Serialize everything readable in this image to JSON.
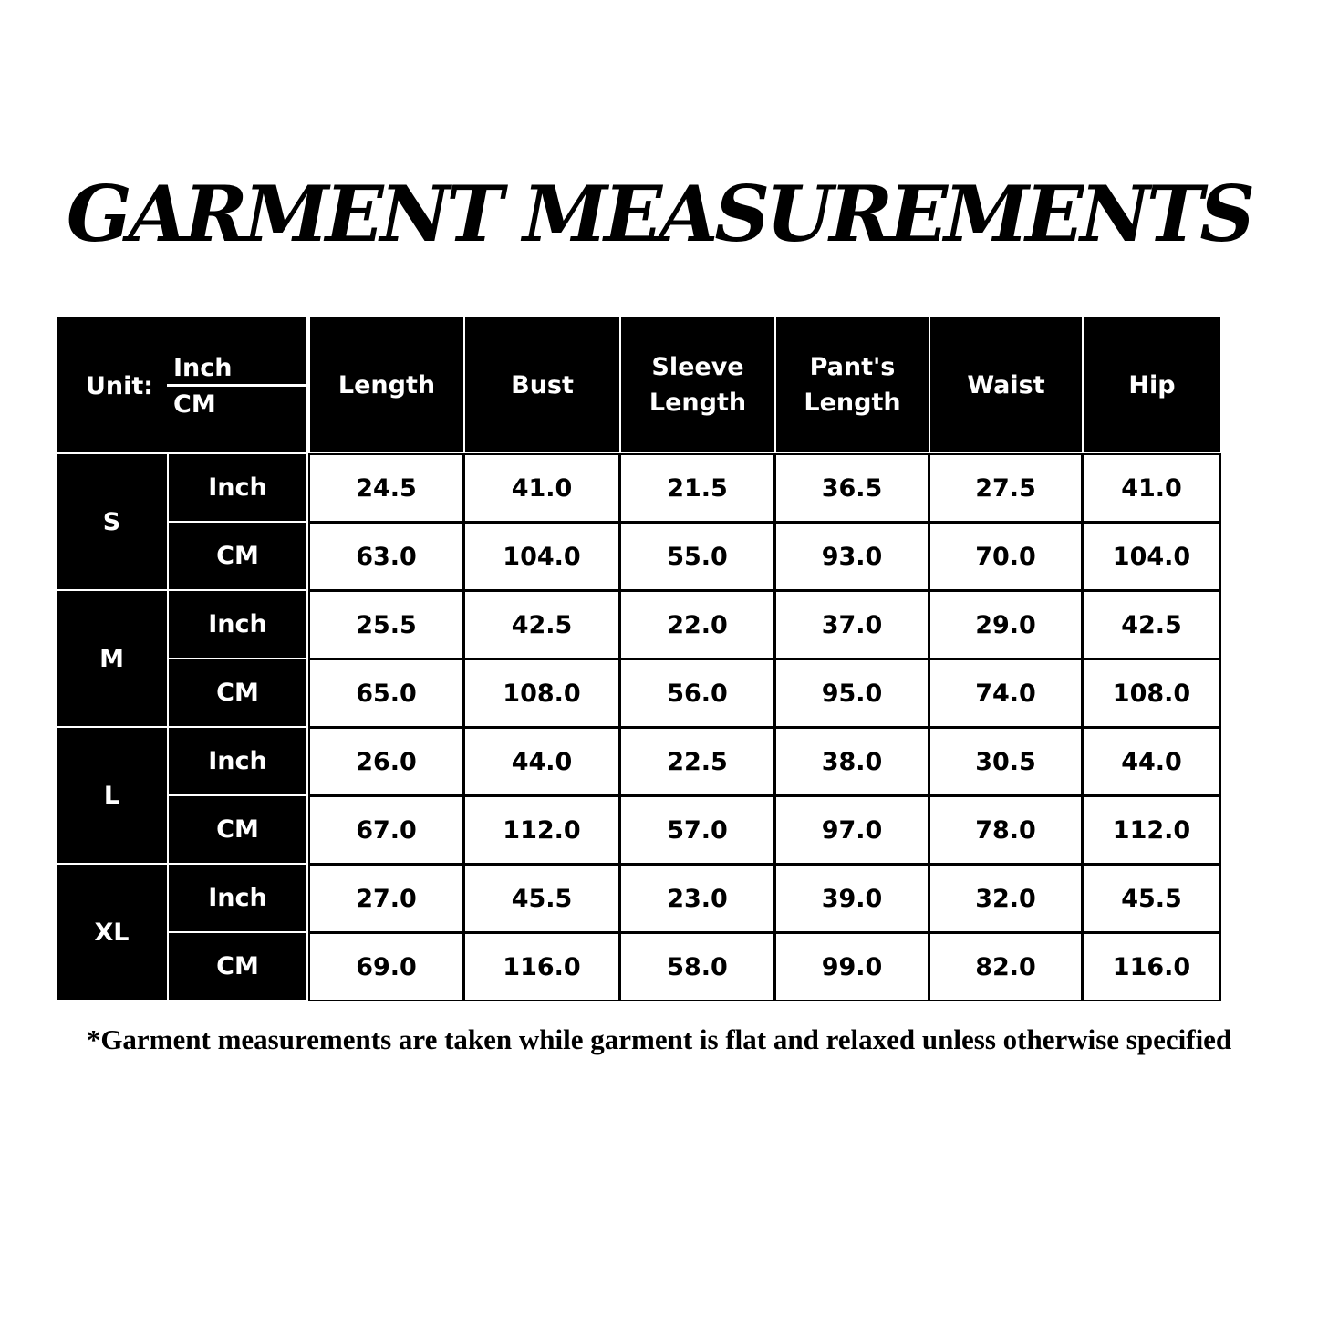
{
  "title": "GARMENT MEASUREMENTS",
  "table": {
    "header": {
      "unit_label": "Unit:",
      "unit_top": "Inch",
      "unit_bottom": "CM",
      "columns": [
        "Length",
        "Bust",
        "Sleeve Length",
        "Pant's Length",
        "Waist",
        "Hip"
      ]
    },
    "groups": [
      {
        "size": "S",
        "rows": [
          {
            "unit": "Inch",
            "values": [
              "24.5",
              "41.0",
              "21.5",
              "36.5",
              "27.5",
              "41.0"
            ]
          },
          {
            "unit": "CM",
            "values": [
              "63.0",
              "104.0",
              "55.0",
              "93.0",
              "70.0",
              "104.0"
            ]
          }
        ]
      },
      {
        "size": "M",
        "rows": [
          {
            "unit": "Inch",
            "values": [
              "25.5",
              "42.5",
              "22.0",
              "37.0",
              "29.0",
              "42.5"
            ]
          },
          {
            "unit": "CM",
            "values": [
              "65.0",
              "108.0",
              "56.0",
              "95.0",
              "74.0",
              "108.0"
            ]
          }
        ]
      },
      {
        "size": "L",
        "rows": [
          {
            "unit": "Inch",
            "values": [
              "26.0",
              "44.0",
              "22.5",
              "38.0",
              "30.5",
              "44.0"
            ]
          },
          {
            "unit": "CM",
            "values": [
              "67.0",
              "112.0",
              "57.0",
              "97.0",
              "78.0",
              "112.0"
            ]
          }
        ]
      },
      {
        "size": "XL",
        "rows": [
          {
            "unit": "Inch",
            "values": [
              "27.0",
              "45.5",
              "23.0",
              "39.0",
              "32.0",
              "45.5"
            ]
          },
          {
            "unit": "CM",
            "values": [
              "69.0",
              "116.0",
              "58.0",
              "99.0",
              "82.0",
              "116.0"
            ]
          }
        ]
      }
    ]
  },
  "footnote": "*Garment measurements are taken while garment is flat and relaxed unless otherwise specified"
}
